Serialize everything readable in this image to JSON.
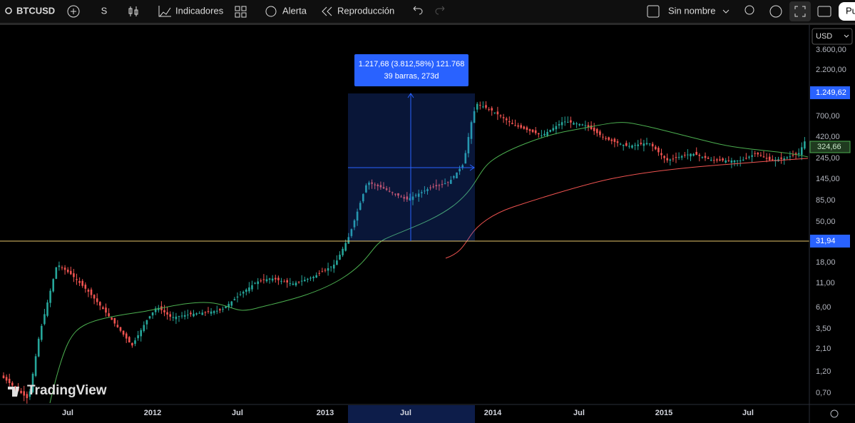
{
  "toolbar": {
    "symbol": "BTCUSD",
    "interval": "S",
    "indicators": "Indicadores",
    "alert": "Alerta",
    "replay": "Reproducción",
    "layout_name": "Sin nombre",
    "publish": "Pu"
  },
  "price_axis": {
    "currency": "USD",
    "labels": [
      "3.600,00",
      "2.200,00",
      "700,00",
      "420,00",
      "245,00",
      "145,00",
      "85,00",
      "50,00",
      "18,00",
      "11,00",
      "6,00",
      "3,50",
      "2,10",
      "1,20",
      "0,70"
    ],
    "last_price": "1.249,62",
    "ma_value": "324,66",
    "line_price": "31,94"
  },
  "time_axis": {
    "labels": [
      "Jul",
      "2012",
      "Jul",
      "2013",
      "Jul",
      "2014",
      "Jul",
      "2015",
      "Jul"
    ]
  },
  "measure": {
    "line1": "1.217,68 (3.812,58%) 121.768",
    "line2": "39 barras, 273d"
  },
  "watermark": "TradingView"
}
